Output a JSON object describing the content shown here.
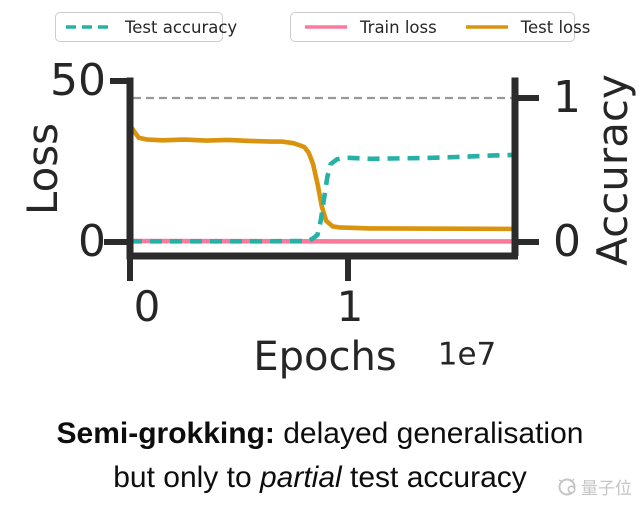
{
  "chart_data": {
    "type": "line",
    "title": "",
    "xlabel": "Epochs",
    "x_offset_text": "1e7",
    "x_ticks": [
      "0",
      "1"
    ],
    "x_range_1e7": [
      0,
      1.77
    ],
    "grid": false,
    "legend_position": "top",
    "left_axis": {
      "label": "Loss",
      "ticks": [
        "50",
        "0"
      ],
      "range": [
        0,
        50
      ]
    },
    "right_axis": {
      "label": "Accuracy",
      "ticks": [
        "1",
        "0"
      ],
      "range": [
        0,
        1
      ]
    },
    "reference_line": {
      "axis": "accuracy",
      "value": 1.0,
      "color": "#999999",
      "style": "dashed"
    },
    "series": [
      {
        "name": "Train loss",
        "axis": "loss",
        "color": "#fa7a9b",
        "dash": "solid",
        "x_1e7": [
          0,
          0.5,
          1.0,
          1.77
        ],
        "y": [
          0.3,
          0.25,
          0.2,
          0.2
        ]
      },
      {
        "name": "Test loss",
        "axis": "loss",
        "color": "#d9930d",
        "dash": "solid",
        "x_1e7": [
          0,
          0.015,
          0.04,
          0.08,
          0.15,
          0.25,
          0.35,
          0.45,
          0.55,
          0.65,
          0.7,
          0.75,
          0.78,
          0.8,
          0.82,
          0.84,
          0.86,
          0.88,
          0.9,
          0.93,
          0.96,
          1.0,
          1.1,
          1.3,
          1.5,
          1.77
        ],
        "y": [
          36,
          34.5,
          32.2,
          31.6,
          31.4,
          31.6,
          31.3,
          31.5,
          31.2,
          31.0,
          31.0,
          30.5,
          29.8,
          29.3,
          27.5,
          24.0,
          18.0,
          11.0,
          6.5,
          4.8,
          4.5,
          4.4,
          4.2,
          4.15,
          4.1,
          4.05
        ]
      },
      {
        "name": "Test accuracy",
        "axis": "accuracy",
        "color": "#25b2a4",
        "dash": "dashed",
        "x_1e7": [
          0,
          0.2,
          0.4,
          0.6,
          0.75,
          0.8,
          0.82,
          0.84,
          0.86,
          0.875,
          0.89,
          0.905,
          0.92,
          0.95,
          0.98,
          1.0,
          1.1,
          1.2,
          1.35,
          1.5,
          1.65,
          1.77
        ],
        "y": [
          0.005,
          0.005,
          0.005,
          0.005,
          0.006,
          0.007,
          0.01,
          0.025,
          0.05,
          0.15,
          0.3,
          0.45,
          0.54,
          0.575,
          0.583,
          0.585,
          0.578,
          0.58,
          0.583,
          0.59,
          0.6,
          0.605
        ]
      }
    ]
  },
  "legend": {
    "test_accuracy": "Test accuracy",
    "train_loss": "Train loss",
    "test_loss": "Test loss"
  },
  "caption": {
    "line1_bold": "Semi-grokking:",
    "line1_rest": " delayed generalisation",
    "line2_pre": "but only to ",
    "line2_italic": "partial",
    "line2_post": " test accuracy"
  },
  "watermark": {
    "text": "量子位"
  }
}
